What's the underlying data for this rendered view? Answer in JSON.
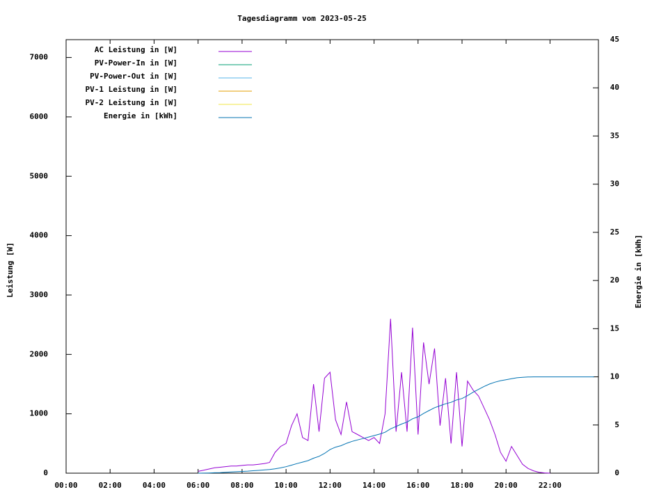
{
  "chart_data": {
    "type": "line",
    "title": "Tagesdiagramm vom 2023-05-25",
    "y_label": "Leistung [W]",
    "y2_label": "Energie in [kWh]",
    "x": [
      6,
      6.25,
      6.5,
      6.75,
      7,
      7.25,
      7.5,
      7.75,
      8,
      8.25,
      8.5,
      8.75,
      9,
      9.25,
      9.5,
      9.75,
      10,
      10.25,
      10.5,
      10.75,
      11,
      11.25,
      11.5,
      11.75,
      12,
      12.25,
      12.5,
      12.75,
      13,
      13.25,
      13.5,
      13.75,
      14,
      14.25,
      14.5,
      14.75,
      15,
      15.25,
      15.5,
      15.75,
      16,
      16.25,
      16.5,
      16.75,
      17,
      17.25,
      17.5,
      17.75,
      18,
      18.25,
      18.5,
      18.75,
      19,
      19.25,
      19.5,
      19.75,
      20,
      20.25,
      20.5,
      20.75,
      21,
      21.25,
      21.5,
      21.75,
      22,
      24
    ],
    "series": [
      {
        "name": "AC Leistung in [W]",
        "color": "#9400d3",
        "values": [
          30,
          50,
          70,
          90,
          100,
          110,
          120,
          120,
          130,
          140,
          140,
          150,
          160,
          180,
          350,
          450,
          500,
          800,
          1000,
          600,
          550,
          1500,
          700,
          1600,
          1700,
          900,
          650,
          1200,
          700,
          650,
          600,
          550,
          600,
          500,
          1000,
          2600,
          700,
          1700,
          700,
          2450,
          650,
          2200,
          1500,
          2100,
          800,
          1600,
          500,
          1700,
          450,
          1550,
          1400,
          1300,
          1100,
          900,
          650,
          350,
          200,
          450,
          300,
          150,
          80,
          40,
          15,
          5,
          0,
          null
        ]
      },
      {
        "name": "PV-Power-In in [W]",
        "color": "#009e73",
        "values": [
          null,
          null,
          null,
          null,
          null,
          null,
          null,
          null,
          null,
          null,
          null,
          null,
          null,
          null,
          null,
          null,
          null,
          null,
          null,
          null,
          null,
          null,
          null,
          null,
          null,
          null,
          null,
          null,
          null,
          null,
          null,
          null,
          null,
          null,
          null,
          null,
          null,
          null,
          null,
          null,
          null,
          null,
          null,
          null,
          null,
          null,
          null,
          null,
          null,
          null,
          null,
          null,
          null,
          null,
          null,
          null,
          null,
          null,
          null,
          null,
          null,
          null,
          null,
          null,
          null,
          null
        ]
      },
      {
        "name": "PV-Power-Out in [W]",
        "color": "#56b4e9",
        "values": [
          null,
          null,
          null,
          null,
          null,
          null,
          null,
          null,
          null,
          null,
          null,
          null,
          null,
          null,
          null,
          null,
          null,
          null,
          null,
          null,
          null,
          null,
          null,
          null,
          null,
          null,
          null,
          null,
          null,
          null,
          null,
          null,
          null,
          null,
          null,
          null,
          null,
          null,
          null,
          null,
          null,
          null,
          null,
          null,
          null,
          null,
          null,
          null,
          null,
          null,
          null,
          null,
          null,
          null,
          null,
          null,
          null,
          null,
          null,
          null,
          null,
          null,
          null,
          null,
          null,
          null
        ]
      },
      {
        "name": "PV-1 Leistung in [W]",
        "color": "#e69f00",
        "values": [
          null,
          null,
          null,
          null,
          null,
          null,
          null,
          null,
          null,
          null,
          null,
          null,
          null,
          null,
          null,
          null,
          null,
          null,
          null,
          null,
          null,
          null,
          null,
          null,
          null,
          null,
          null,
          null,
          null,
          null,
          null,
          null,
          null,
          null,
          null,
          null,
          null,
          null,
          null,
          null,
          null,
          null,
          null,
          null,
          null,
          null,
          null,
          null,
          null,
          null,
          null,
          null,
          null,
          null,
          null,
          null,
          null,
          null,
          null,
          null,
          null,
          null,
          null,
          null,
          null,
          null
        ]
      },
      {
        "name": "PV-2 Leistung in [W]",
        "color": "#f0e442",
        "values": [
          null,
          null,
          null,
          null,
          null,
          null,
          null,
          null,
          null,
          null,
          null,
          null,
          null,
          null,
          null,
          null,
          null,
          null,
          null,
          null,
          null,
          null,
          null,
          null,
          null,
          null,
          null,
          null,
          null,
          null,
          null,
          null,
          null,
          null,
          null,
          null,
          null,
          null,
          null,
          null,
          null,
          null,
          null,
          null,
          null,
          null,
          null,
          null,
          null,
          null,
          null,
          null,
          null,
          null,
          null,
          null,
          null,
          null,
          null,
          null,
          null,
          null,
          null,
          null,
          null,
          null
        ]
      },
      {
        "name": "Energie in [kWh]",
        "color": "#0072b2",
        "axis": "y2",
        "values": [
          0,
          0.01,
          0.02,
          0.04,
          0.06,
          0.09,
          0.12,
          0.15,
          0.18,
          0.21,
          0.25,
          0.29,
          0.33,
          0.38,
          0.45,
          0.55,
          0.67,
          0.83,
          1.0,
          1.15,
          1.3,
          1.55,
          1.75,
          2.05,
          2.45,
          2.7,
          2.85,
          3.1,
          3.3,
          3.45,
          3.6,
          3.75,
          3.9,
          4.05,
          4.25,
          4.6,
          4.85,
          5.1,
          5.3,
          5.65,
          5.85,
          6.2,
          6.5,
          6.8,
          7.0,
          7.2,
          7.35,
          7.6,
          7.75,
          8.05,
          8.4,
          8.7,
          9.0,
          9.25,
          9.45,
          9.6,
          9.7,
          9.8,
          9.9,
          9.95,
          9.98,
          10.0,
          10.0,
          10.0,
          10.0,
          10.0
        ]
      }
    ],
    "xlim": [
      0,
      24.2
    ],
    "xticks": [
      {
        "value": 0,
        "label": "00:00"
      },
      {
        "value": 2,
        "label": "02:00"
      },
      {
        "value": 4,
        "label": "04:00"
      },
      {
        "value": 6,
        "label": "06:00"
      },
      {
        "value": 8,
        "label": "08:00"
      },
      {
        "value": 10,
        "label": "10:00"
      },
      {
        "value": 12,
        "label": "12:00"
      },
      {
        "value": 14,
        "label": "14:00"
      },
      {
        "value": 16,
        "label": "16:00"
      },
      {
        "value": 18,
        "label": "18:00"
      },
      {
        "value": 20,
        "label": "20:00"
      },
      {
        "value": 22,
        "label": "22:00"
      }
    ],
    "ylim": [
      0,
      7300
    ],
    "yticks": [
      0,
      1000,
      2000,
      3000,
      4000,
      5000,
      6000,
      7000
    ],
    "y2lim": [
      0,
      45
    ],
    "y2ticks": [
      0,
      5,
      10,
      15,
      20,
      25,
      30,
      35,
      40,
      45
    ],
    "legend": "top-left"
  }
}
